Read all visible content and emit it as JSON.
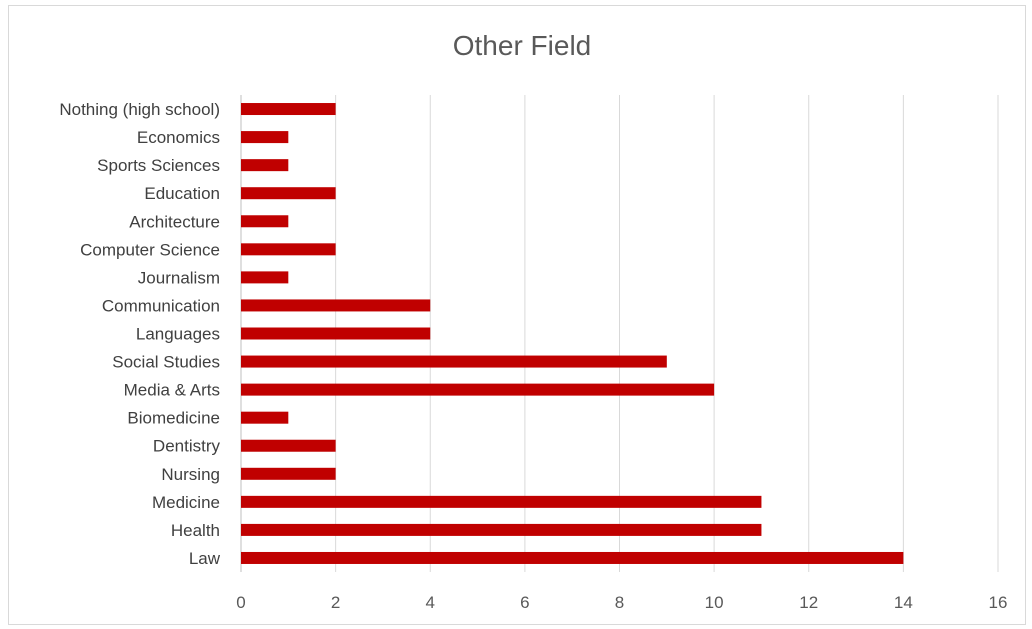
{
  "chart_data": {
    "type": "bar",
    "orientation": "horizontal",
    "title": "Other Field",
    "xlabel": "",
    "ylabel": "",
    "xlim": [
      0,
      16
    ],
    "x_ticks": [
      "0",
      "2",
      "4",
      "6",
      "8",
      "10",
      "12",
      "14",
      "16"
    ],
    "grid": true,
    "legend": "none",
    "bar_color": "#c00000",
    "categories": [
      "Law",
      "Health",
      "Medicine",
      "Nursing",
      "Dentistry",
      "Biomedicine",
      "Media & Arts",
      "Social Studies",
      "Languages",
      "Communication",
      "Journalism",
      "Computer Science",
      "Architecture",
      "Education",
      "Sports Sciences",
      "Economics",
      "Nothing (high school)"
    ],
    "values": [
      14,
      11,
      11,
      2,
      2,
      1,
      10,
      9,
      4,
      4,
      1,
      2,
      1,
      2,
      1,
      1,
      2
    ]
  }
}
